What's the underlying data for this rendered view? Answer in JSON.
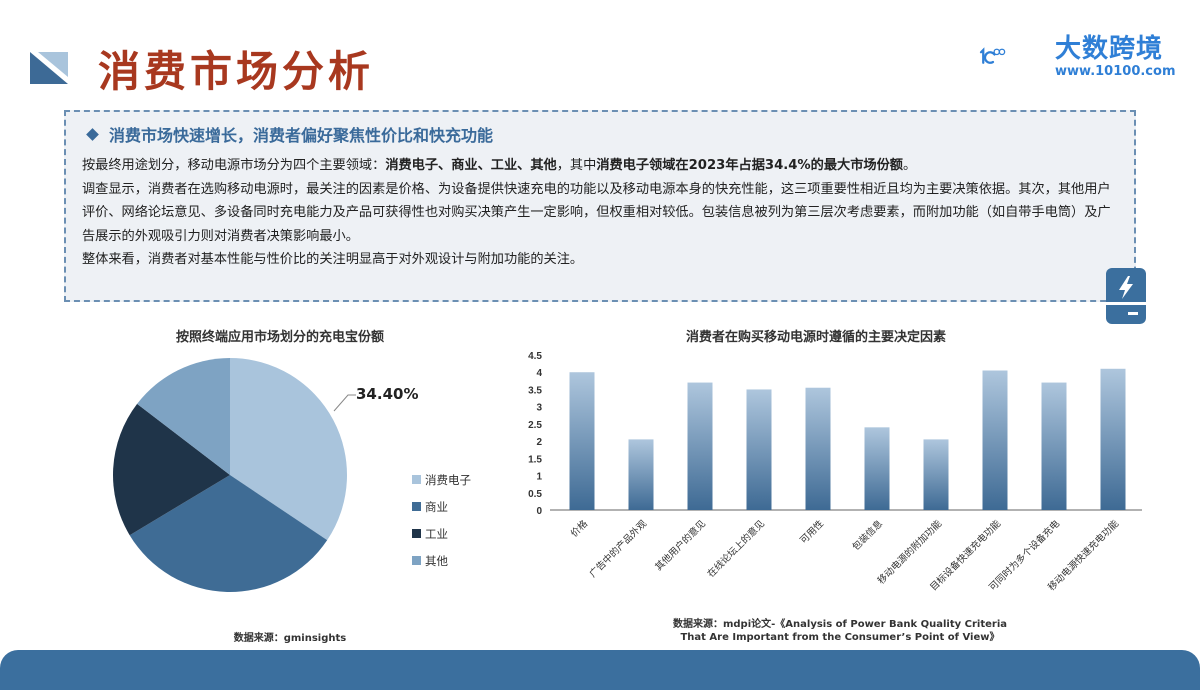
{
  "header": {
    "title": "消费市场分析",
    "logo": {
      "brand": "大数跨境",
      "url": "www.10100.com",
      "mark": "10100"
    }
  },
  "summary": {
    "heading": "消费市场快速增长，消费者偏好聚焦性价比和快充功能",
    "p1_prefix": "按最终用途划分，移动电源市场分为四个主要领域：",
    "p1_bold1": "消费电子、商业、工业、其他",
    "p1_mid": "，其中",
    "p1_bold2": "消费电子领域在2023年占据34.4%的最大市场份额",
    "p1_suffix": "。",
    "p2": "调查显示，消费者在选购移动电源时，最关注的因素是价格、为设备提供快速充电的功能以及移动电源本身的快充性能，这三项重要性相近且均为主要决策依据。其次，其他用户评价、网络论坛意见、多设备同时充电能力及产品可获得性也对购买决策产生一定影响，但权重相对较低。包装信息被列为第三层次考虑要素，而附加功能（如自带手电筒）及广告展示的外观吸引力则对消费者决策影响最小。",
    "p3": "整体来看，消费者对基本性能与性价比的关注明显高于对外观设计与附加功能的关注。"
  },
  "icons": {
    "title_mark": "triangle-mark-icon",
    "battery": "power-bank-icon"
  },
  "colors": {
    "title_red": "#a8381f",
    "brand_blue": "#2f7fd6",
    "accent_blue": "#3b6f9e",
    "pie": [
      "#a9c4dc",
      "#3f6c95",
      "#1f3449",
      "#7ea3c3"
    ]
  },
  "chart_data": [
    {
      "type": "pie",
      "title": "按照终端应用市场划分的充电宝份额",
      "categories": [
        "消费电子",
        "商业",
        "工业",
        "其他"
      ],
      "values": [
        34.4,
        32.0,
        19.0,
        14.6
      ],
      "data_labels": [
        "34.40%"
      ],
      "legend_position": "right",
      "source": "数据来源：gminsights"
    },
    {
      "type": "bar",
      "title": "消费者在购买移动电源时遵循的主要决定因素",
      "categories": [
        "价格",
        "广告中的产品外观",
        "其他用户的意见",
        "在线论坛上的意见",
        "可用性",
        "包装信息",
        "移动电源的附加功能",
        "目标设备快速充电功能",
        "可同时为多个设备充电",
        "移动电源快速充电功能"
      ],
      "values": [
        4.0,
        2.05,
        3.7,
        3.5,
        3.55,
        2.4,
        2.05,
        4.05,
        3.7,
        4.1
      ],
      "xlabel": "",
      "ylabel": "",
      "ylim": [
        0,
        4.5
      ],
      "yticks": [
        "0",
        "0.5",
        "1",
        "1.5",
        "2",
        "2.5",
        "3",
        "3.5",
        "4",
        "4.5"
      ],
      "grid": false,
      "source_line1": "数据来源：mdpi论文-《Analysis of Power Bank Quality Criteria",
      "source_line2": "That Are Important from the Consumer’s Point of View》"
    }
  ]
}
